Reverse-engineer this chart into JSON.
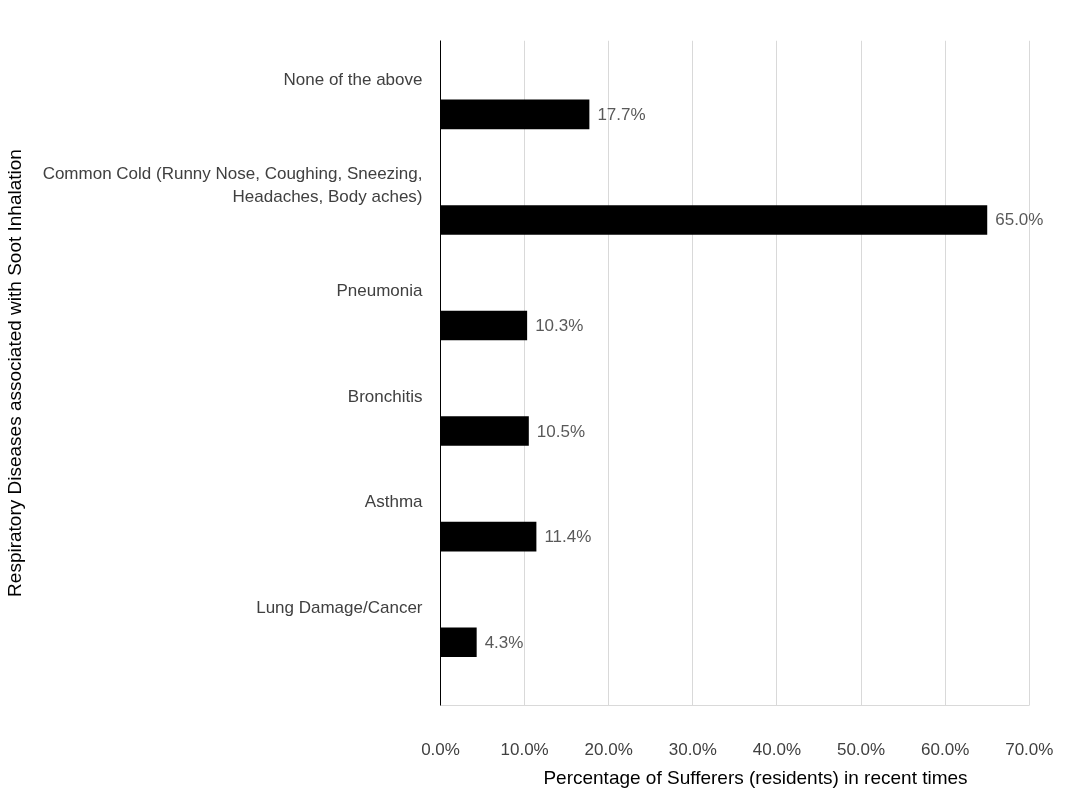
{
  "chart_data": {
    "type": "bar",
    "orientation": "horizontal",
    "categories": [
      "None of the above",
      "Common Cold (Runny Nose, Coughing, Sneezing,\nHeadaches, Body aches)",
      "Pneumonia",
      "Bronchitis",
      "Asthma",
      "Lung Damage/Cancer"
    ],
    "values": [
      17.7,
      65.0,
      10.3,
      10.5,
      11.4,
      4.3
    ],
    "value_labels": [
      "17.7%",
      "65.0%",
      "10.3%",
      "10.5%",
      "11.4%",
      "4.3%"
    ],
    "color": "#000000",
    "xlim": [
      0,
      70
    ],
    "xticks": [
      {
        "value": 0,
        "label": "0.0%"
      },
      {
        "value": 10,
        "label": "10.0%"
      },
      {
        "value": 20,
        "label": "20.0%"
      },
      {
        "value": 30,
        "label": "30.0%"
      },
      {
        "value": 40,
        "label": "40.0%"
      },
      {
        "value": 50,
        "label": "50.0%"
      },
      {
        "value": 60,
        "label": "60.0%"
      },
      {
        "value": 70,
        "label": "70.0%"
      }
    ],
    "xlabel": "Percentage of Sufferers (residents) in recent times",
    "ylabel": "Respiratory Diseases associated with Soot Inhalation",
    "grid": "x"
  }
}
